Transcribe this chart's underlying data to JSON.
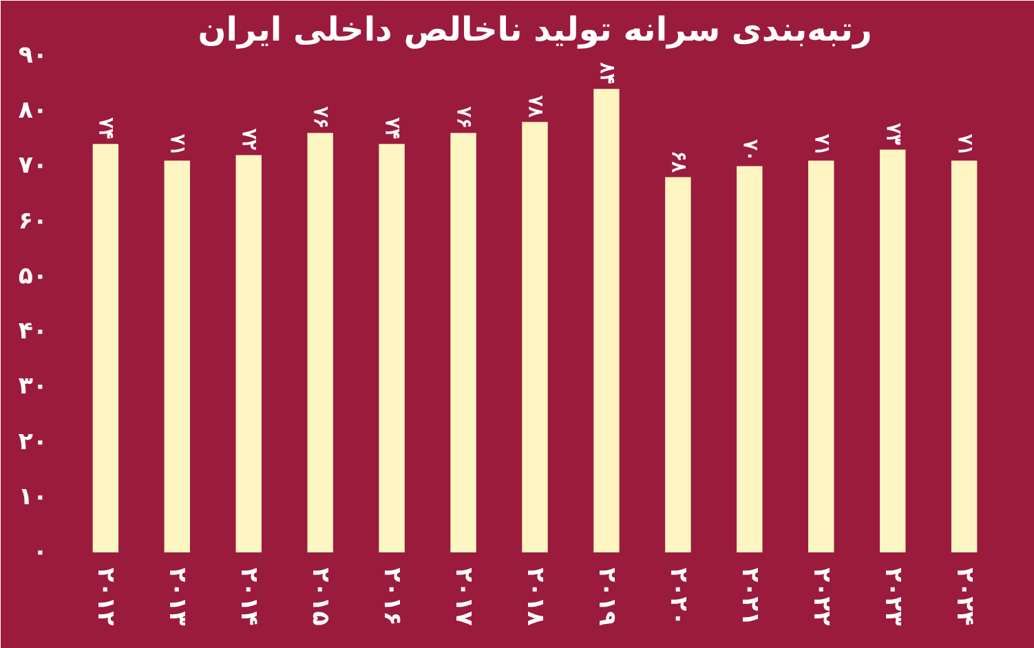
{
  "chart_data": {
    "type": "bar",
    "title": "رتبه‌بندی سرانه تولید ناخالص داخلی ایران",
    "categories": [
      "۲۰۱۲",
      "۲۰۱۳",
      "۲۰۱۴",
      "۲۰۱۵",
      "۲۰۱۶",
      "۲۰۱۷",
      "۲۰۱۸",
      "۲۰۱۹",
      "۲۰۲۰",
      "۲۰۲۱",
      "۲۰۲۲",
      "۲۰۲۳",
      "۲۰۲۴"
    ],
    "values": [
      74,
      71,
      72,
      76,
      74,
      76,
      78,
      84,
      68,
      70,
      71,
      73,
      71
    ],
    "value_labels": [
      "۷۴",
      "۷۱",
      "۷۲",
      "۷۶",
      "۷۴",
      "۷۶",
      "۷۸",
      "۸۴",
      "۶۸",
      "۷۰",
      "۷۱",
      "۷۳",
      "۷۱"
    ],
    "color": "#fdf6c3",
    "ylim": [
      0,
      90
    ],
    "yticks": [
      {
        "value": 0,
        "label": "۰"
      },
      {
        "value": 10,
        "label": "۱۰"
      },
      {
        "value": 20,
        "label": "۲۰"
      },
      {
        "value": 30,
        "label": "۳۰"
      },
      {
        "value": 40,
        "label": "۴۰"
      },
      {
        "value": 50,
        "label": "۵۰"
      },
      {
        "value": 60,
        "label": "۶۰"
      },
      {
        "value": 70,
        "label": "۷۰"
      },
      {
        "value": 80,
        "label": "۸۰"
      },
      {
        "value": 90,
        "label": "۹۰"
      }
    ],
    "grid": false
  }
}
